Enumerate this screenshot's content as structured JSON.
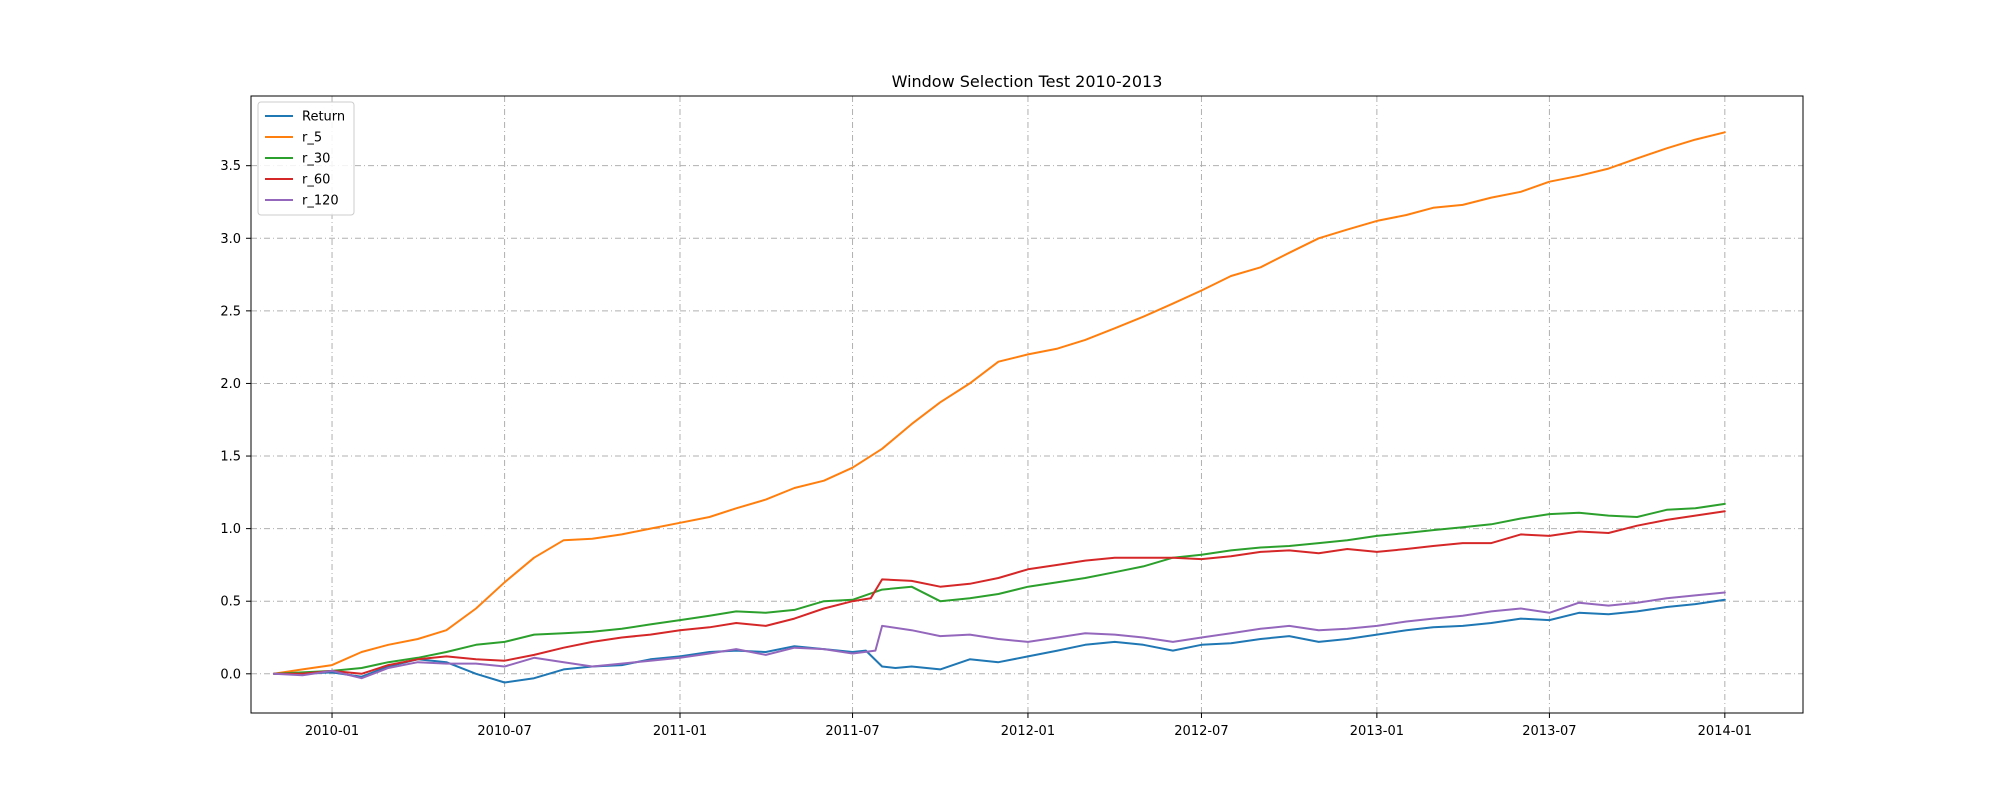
{
  "chart_data": {
    "type": "line",
    "title": "Window Selection Test 2010-2013",
    "xlabel": "",
    "ylabel": "",
    "grid": true,
    "legend_position": "top-left",
    "xlim": [
      "2009-10-08",
      "2014-03-24"
    ],
    "ylim": [
      -0.27,
      3.98
    ],
    "x_ticks": [
      "2010-01",
      "2010-07",
      "2011-01",
      "2011-07",
      "2012-01",
      "2012-07",
      "2013-01",
      "2013-07",
      "2014-01"
    ],
    "y_ticks": [
      "0.0",
      "0.5",
      "1.0",
      "1.5",
      "2.0",
      "2.5",
      "3.0",
      "3.5"
    ],
    "series": [
      {
        "name": "Return",
        "color": "#1f77b4",
        "points": [
          [
            "2009-11-01",
            0.0
          ],
          [
            "2009-12-01",
            0.0
          ],
          [
            "2010-01-01",
            0.01
          ],
          [
            "2010-02-01",
            -0.02
          ],
          [
            "2010-03-01",
            0.05
          ],
          [
            "2010-04-01",
            0.1
          ],
          [
            "2010-05-01",
            0.08
          ],
          [
            "2010-06-01",
            0.0
          ],
          [
            "2010-07-01",
            -0.06
          ],
          [
            "2010-08-01",
            -0.03
          ],
          [
            "2010-09-01",
            0.03
          ],
          [
            "2010-10-01",
            0.05
          ],
          [
            "2010-11-01",
            0.06
          ],
          [
            "2010-12-01",
            0.1
          ],
          [
            "2011-01-01",
            0.12
          ],
          [
            "2011-02-01",
            0.15
          ],
          [
            "2011-03-01",
            0.16
          ],
          [
            "2011-04-01",
            0.15
          ],
          [
            "2011-05-01",
            0.19
          ],
          [
            "2011-06-01",
            0.17
          ],
          [
            "2011-07-01",
            0.15
          ],
          [
            "2011-07-15",
            0.16
          ],
          [
            "2011-08-01",
            0.05
          ],
          [
            "2011-08-15",
            0.04
          ],
          [
            "2011-09-01",
            0.05
          ],
          [
            "2011-10-01",
            0.03
          ],
          [
            "2011-11-01",
            0.1
          ],
          [
            "2011-12-01",
            0.08
          ],
          [
            "2012-01-01",
            0.12
          ],
          [
            "2012-02-01",
            0.16
          ],
          [
            "2012-03-01",
            0.2
          ],
          [
            "2012-04-01",
            0.22
          ],
          [
            "2012-05-01",
            0.2
          ],
          [
            "2012-06-01",
            0.16
          ],
          [
            "2012-07-01",
            0.2
          ],
          [
            "2012-08-01",
            0.21
          ],
          [
            "2012-09-01",
            0.24
          ],
          [
            "2012-10-01",
            0.26
          ],
          [
            "2012-11-01",
            0.22
          ],
          [
            "2012-12-01",
            0.24
          ],
          [
            "2013-01-01",
            0.27
          ],
          [
            "2013-02-01",
            0.3
          ],
          [
            "2013-03-01",
            0.32
          ],
          [
            "2013-04-01",
            0.33
          ],
          [
            "2013-05-01",
            0.35
          ],
          [
            "2013-06-01",
            0.38
          ],
          [
            "2013-07-01",
            0.37
          ],
          [
            "2013-08-01",
            0.42
          ],
          [
            "2013-09-01",
            0.41
          ],
          [
            "2013-10-01",
            0.43
          ],
          [
            "2013-11-01",
            0.46
          ],
          [
            "2013-12-01",
            0.48
          ],
          [
            "2014-01-01",
            0.51
          ]
        ]
      },
      {
        "name": "r_5",
        "color": "#ff7f0e",
        "points": [
          [
            "2009-11-01",
            0.0
          ],
          [
            "2009-12-01",
            0.03
          ],
          [
            "2010-01-01",
            0.06
          ],
          [
            "2010-02-01",
            0.15
          ],
          [
            "2010-03-01",
            0.2
          ],
          [
            "2010-04-01",
            0.24
          ],
          [
            "2010-05-01",
            0.3
          ],
          [
            "2010-06-01",
            0.45
          ],
          [
            "2010-07-01",
            0.63
          ],
          [
            "2010-08-01",
            0.8
          ],
          [
            "2010-09-01",
            0.92
          ],
          [
            "2010-10-01",
            0.93
          ],
          [
            "2010-11-01",
            0.96
          ],
          [
            "2010-12-01",
            1.0
          ],
          [
            "2011-01-01",
            1.04
          ],
          [
            "2011-02-01",
            1.08
          ],
          [
            "2011-03-01",
            1.14
          ],
          [
            "2011-04-01",
            1.2
          ],
          [
            "2011-05-01",
            1.28
          ],
          [
            "2011-06-01",
            1.33
          ],
          [
            "2011-07-01",
            1.42
          ],
          [
            "2011-08-01",
            1.55
          ],
          [
            "2011-09-01",
            1.72
          ],
          [
            "2011-10-01",
            1.87
          ],
          [
            "2011-11-01",
            2.0
          ],
          [
            "2011-12-01",
            2.15
          ],
          [
            "2012-01-01",
            2.2
          ],
          [
            "2012-02-01",
            2.24
          ],
          [
            "2012-03-01",
            2.3
          ],
          [
            "2012-04-01",
            2.38
          ],
          [
            "2012-05-01",
            2.46
          ],
          [
            "2012-06-01",
            2.55
          ],
          [
            "2012-07-01",
            2.64
          ],
          [
            "2012-08-01",
            2.74
          ],
          [
            "2012-09-01",
            2.8
          ],
          [
            "2012-10-01",
            2.9
          ],
          [
            "2012-11-01",
            3.0
          ],
          [
            "2012-12-01",
            3.06
          ],
          [
            "2013-01-01",
            3.12
          ],
          [
            "2013-02-01",
            3.16
          ],
          [
            "2013-03-01",
            3.21
          ],
          [
            "2013-04-01",
            3.23
          ],
          [
            "2013-05-01",
            3.28
          ],
          [
            "2013-06-01",
            3.32
          ],
          [
            "2013-07-01",
            3.39
          ],
          [
            "2013-08-01",
            3.43
          ],
          [
            "2013-09-01",
            3.48
          ],
          [
            "2013-10-01",
            3.55
          ],
          [
            "2013-11-01",
            3.62
          ],
          [
            "2013-12-01",
            3.68
          ],
          [
            "2014-01-01",
            3.73
          ]
        ]
      },
      {
        "name": "r_30",
        "color": "#2ca02c",
        "points": [
          [
            "2009-11-01",
            0.0
          ],
          [
            "2009-12-01",
            0.01
          ],
          [
            "2010-01-01",
            0.02
          ],
          [
            "2010-02-01",
            0.04
          ],
          [
            "2010-03-01",
            0.08
          ],
          [
            "2010-04-01",
            0.11
          ],
          [
            "2010-05-01",
            0.15
          ],
          [
            "2010-06-01",
            0.2
          ],
          [
            "2010-07-01",
            0.22
          ],
          [
            "2010-08-01",
            0.27
          ],
          [
            "2010-09-01",
            0.28
          ],
          [
            "2010-10-01",
            0.29
          ],
          [
            "2010-11-01",
            0.31
          ],
          [
            "2010-12-01",
            0.34
          ],
          [
            "2011-01-01",
            0.37
          ],
          [
            "2011-02-01",
            0.4
          ],
          [
            "2011-03-01",
            0.43
          ],
          [
            "2011-04-01",
            0.42
          ],
          [
            "2011-05-01",
            0.44
          ],
          [
            "2011-06-01",
            0.5
          ],
          [
            "2011-07-01",
            0.51
          ],
          [
            "2011-08-01",
            0.58
          ],
          [
            "2011-09-01",
            0.6
          ],
          [
            "2011-10-01",
            0.5
          ],
          [
            "2011-11-01",
            0.52
          ],
          [
            "2011-12-01",
            0.55
          ],
          [
            "2012-01-01",
            0.6
          ],
          [
            "2012-02-01",
            0.63
          ],
          [
            "2012-03-01",
            0.66
          ],
          [
            "2012-04-01",
            0.7
          ],
          [
            "2012-05-01",
            0.74
          ],
          [
            "2012-06-01",
            0.8
          ],
          [
            "2012-07-01",
            0.82
          ],
          [
            "2012-08-01",
            0.85
          ],
          [
            "2012-09-01",
            0.87
          ],
          [
            "2012-10-01",
            0.88
          ],
          [
            "2012-11-01",
            0.9
          ],
          [
            "2012-12-01",
            0.92
          ],
          [
            "2013-01-01",
            0.95
          ],
          [
            "2013-02-01",
            0.97
          ],
          [
            "2013-03-01",
            0.99
          ],
          [
            "2013-04-01",
            1.01
          ],
          [
            "2013-05-01",
            1.03
          ],
          [
            "2013-06-01",
            1.07
          ],
          [
            "2013-07-01",
            1.1
          ],
          [
            "2013-08-01",
            1.11
          ],
          [
            "2013-09-01",
            1.09
          ],
          [
            "2013-10-01",
            1.08
          ],
          [
            "2013-11-01",
            1.13
          ],
          [
            "2013-12-01",
            1.14
          ],
          [
            "2014-01-01",
            1.17
          ]
        ]
      },
      {
        "name": "r_60",
        "color": "#d62728",
        "points": [
          [
            "2009-11-01",
            0.0
          ],
          [
            "2009-12-01",
            0.0
          ],
          [
            "2010-01-01",
            0.02
          ],
          [
            "2010-02-01",
            0.0
          ],
          [
            "2010-03-01",
            0.06
          ],
          [
            "2010-04-01",
            0.1
          ],
          [
            "2010-05-01",
            0.12
          ],
          [
            "2010-06-01",
            0.1
          ],
          [
            "2010-07-01",
            0.09
          ],
          [
            "2010-08-01",
            0.13
          ],
          [
            "2010-09-01",
            0.18
          ],
          [
            "2010-10-01",
            0.22
          ],
          [
            "2010-11-01",
            0.25
          ],
          [
            "2010-12-01",
            0.27
          ],
          [
            "2011-01-01",
            0.3
          ],
          [
            "2011-02-01",
            0.32
          ],
          [
            "2011-03-01",
            0.35
          ],
          [
            "2011-04-01",
            0.33
          ],
          [
            "2011-05-01",
            0.38
          ],
          [
            "2011-06-01",
            0.45
          ],
          [
            "2011-07-01",
            0.5
          ],
          [
            "2011-07-20",
            0.52
          ],
          [
            "2011-08-01",
            0.65
          ],
          [
            "2011-09-01",
            0.64
          ],
          [
            "2011-10-01",
            0.6
          ],
          [
            "2011-11-01",
            0.62
          ],
          [
            "2011-12-01",
            0.66
          ],
          [
            "2012-01-01",
            0.72
          ],
          [
            "2012-02-01",
            0.75
          ],
          [
            "2012-03-01",
            0.78
          ],
          [
            "2012-04-01",
            0.8
          ],
          [
            "2012-05-01",
            0.8
          ],
          [
            "2012-06-01",
            0.8
          ],
          [
            "2012-07-01",
            0.79
          ],
          [
            "2012-08-01",
            0.81
          ],
          [
            "2012-09-01",
            0.84
          ],
          [
            "2012-10-01",
            0.85
          ],
          [
            "2012-11-01",
            0.83
          ],
          [
            "2012-12-01",
            0.86
          ],
          [
            "2013-01-01",
            0.84
          ],
          [
            "2013-02-01",
            0.86
          ],
          [
            "2013-03-01",
            0.88
          ],
          [
            "2013-04-01",
            0.9
          ],
          [
            "2013-05-01",
            0.9
          ],
          [
            "2013-06-01",
            0.96
          ],
          [
            "2013-07-01",
            0.95
          ],
          [
            "2013-08-01",
            0.98
          ],
          [
            "2013-09-01",
            0.97
          ],
          [
            "2013-10-01",
            1.02
          ],
          [
            "2013-11-01",
            1.06
          ],
          [
            "2013-12-01",
            1.09
          ],
          [
            "2014-01-01",
            1.12
          ]
        ]
      },
      {
        "name": "r_120",
        "color": "#9467bd",
        "points": [
          [
            "2009-11-01",
            0.0
          ],
          [
            "2009-12-01",
            -0.01
          ],
          [
            "2010-01-01",
            0.02
          ],
          [
            "2010-02-01",
            -0.03
          ],
          [
            "2010-03-01",
            0.04
          ],
          [
            "2010-04-01",
            0.08
          ],
          [
            "2010-05-01",
            0.07
          ],
          [
            "2010-06-01",
            0.07
          ],
          [
            "2010-07-01",
            0.05
          ],
          [
            "2010-08-01",
            0.11
          ],
          [
            "2010-09-01",
            0.08
          ],
          [
            "2010-10-01",
            0.05
          ],
          [
            "2010-11-01",
            0.07
          ],
          [
            "2010-12-01",
            0.09
          ],
          [
            "2011-01-01",
            0.11
          ],
          [
            "2011-02-01",
            0.14
          ],
          [
            "2011-03-01",
            0.17
          ],
          [
            "2011-04-01",
            0.13
          ],
          [
            "2011-05-01",
            0.18
          ],
          [
            "2011-06-01",
            0.17
          ],
          [
            "2011-07-01",
            0.14
          ],
          [
            "2011-07-25",
            0.16
          ],
          [
            "2011-08-01",
            0.33
          ],
          [
            "2011-09-01",
            0.3
          ],
          [
            "2011-10-01",
            0.26
          ],
          [
            "2011-11-01",
            0.27
          ],
          [
            "2011-12-01",
            0.24
          ],
          [
            "2012-01-01",
            0.22
          ],
          [
            "2012-02-01",
            0.25
          ],
          [
            "2012-03-01",
            0.28
          ],
          [
            "2012-04-01",
            0.27
          ],
          [
            "2012-05-01",
            0.25
          ],
          [
            "2012-06-01",
            0.22
          ],
          [
            "2012-07-01",
            0.25
          ],
          [
            "2012-08-01",
            0.28
          ],
          [
            "2012-09-01",
            0.31
          ],
          [
            "2012-10-01",
            0.33
          ],
          [
            "2012-11-01",
            0.3
          ],
          [
            "2012-12-01",
            0.31
          ],
          [
            "2013-01-01",
            0.33
          ],
          [
            "2013-02-01",
            0.36
          ],
          [
            "2013-03-01",
            0.38
          ],
          [
            "2013-04-01",
            0.4
          ],
          [
            "2013-05-01",
            0.43
          ],
          [
            "2013-06-01",
            0.45
          ],
          [
            "2013-07-01",
            0.42
          ],
          [
            "2013-08-01",
            0.49
          ],
          [
            "2013-09-01",
            0.47
          ],
          [
            "2013-10-01",
            0.49
          ],
          [
            "2013-11-01",
            0.52
          ],
          [
            "2013-12-01",
            0.54
          ],
          [
            "2014-01-01",
            0.56
          ]
        ]
      }
    ]
  }
}
